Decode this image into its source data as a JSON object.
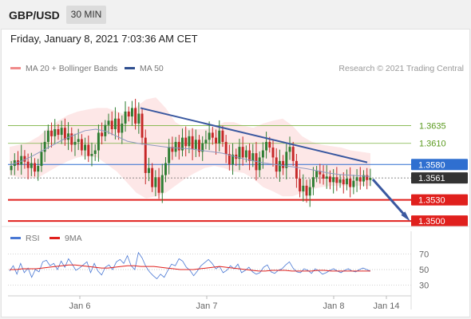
{
  "header": {
    "pair": "GBP/USD",
    "timeframe": "30 MIN"
  },
  "subheader": {
    "datetime": "Friday, January 8, 2021 7:03:36 AM CET"
  },
  "legend": {
    "ma20_label": "MA 20 + Bollinger Bands",
    "ma50_label": "MA 50",
    "rsi_label": "RSI",
    "ma9_label": "9MA"
  },
  "credit": "Research © 2021 Trading Central",
  "colors": {
    "ma20": "#f08a8a",
    "ma50": "#2f4f8f",
    "bollinger_fill": "#fde3e3",
    "up_candle": "#2e7d32",
    "down_candle": "#c62828",
    "resistance": "#7cb342",
    "support": "#e0201d",
    "current_price": "#333333",
    "pivot": "#2f6fd0",
    "trendline": "#3a58a0",
    "rsi": "#4a78d4",
    "rsi_ma9": "#e0201d"
  },
  "chart_data": [
    {
      "type": "candlestick",
      "title": "GBP/USD 30 MIN",
      "x_ticks": [
        "Jan 6",
        "Jan 7",
        "Jan 8",
        "Jan 14"
      ],
      "ylim": [
        1.349,
        1.37
      ],
      "levels": [
        {
          "value": 1.3635,
          "label": "1.3635",
          "kind": "resistance"
        },
        {
          "value": 1.361,
          "label": "1.3610",
          "kind": "resistance"
        },
        {
          "value": 1.358,
          "label": "1.3580",
          "kind": "pivot"
        },
        {
          "value": 1.3561,
          "label": "1.3561",
          "kind": "current_price"
        },
        {
          "value": 1.353,
          "label": "1.3530",
          "kind": "support"
        },
        {
          "value": 1.35,
          "label": "1.3500",
          "kind": "support"
        }
      ],
      "close": [
        1.3578,
        1.3586,
        1.358,
        1.3592,
        1.3584,
        1.3575,
        1.3582,
        1.357,
        1.3578,
        1.3598,
        1.3612,
        1.3628,
        1.362,
        1.363,
        1.3622,
        1.3632,
        1.3615,
        1.3624,
        1.3608,
        1.3612,
        1.3616,
        1.36,
        1.3608,
        1.3592,
        1.3595,
        1.36,
        1.3625,
        1.362,
        1.3636,
        1.3642,
        1.363,
        1.3645,
        1.3625,
        1.3638,
        1.3655,
        1.3648,
        1.366,
        1.3638,
        1.3652,
        1.3618,
        1.3568,
        1.3575,
        1.3548,
        1.3562,
        1.354,
        1.3565,
        1.3582,
        1.3605,
        1.3598,
        1.3612,
        1.36,
        1.3618,
        1.3606,
        1.362,
        1.3602,
        1.3615,
        1.3598,
        1.361,
        1.3615,
        1.3625,
        1.3618,
        1.361,
        1.3628,
        1.3612,
        1.3595,
        1.358,
        1.3594,
        1.3588,
        1.3605,
        1.359,
        1.36,
        1.3585,
        1.3596,
        1.3572,
        1.359,
        1.36,
        1.3612,
        1.3604,
        1.359,
        1.357,
        1.3585,
        1.3575,
        1.3598,
        1.3605,
        1.3585,
        1.356,
        1.3542,
        1.355,
        1.3536,
        1.3548,
        1.3562,
        1.3571,
        1.3566,
        1.356,
        1.3563,
        1.3555,
        1.3562,
        1.3554,
        1.3559,
        1.3552,
        1.356,
        1.3548,
        1.3557,
        1.3562,
        1.3556,
        1.3565,
        1.3558,
        1.3561
      ],
      "bollinger_upper": [
        1.3605,
        1.3608,
        1.3612,
        1.362,
        1.3632,
        1.3642,
        1.365,
        1.3655,
        1.3658,
        1.366,
        1.366,
        1.3655,
        1.365,
        1.3662,
        1.3672,
        1.3675,
        1.366,
        1.364,
        1.3632,
        1.363,
        1.363,
        1.3632,
        1.364,
        1.364,
        1.3635,
        1.3632,
        1.3638,
        1.3642,
        1.3645,
        1.3635,
        1.362,
        1.3612,
        1.3608,
        1.3606,
        1.3604,
        1.36,
        1.3598,
        1.3596
      ],
      "bollinger_lower": [
        1.3565,
        1.3562,
        1.356,
        1.3562,
        1.357,
        1.3578,
        1.3585,
        1.359,
        1.3592,
        1.359,
        1.358,
        1.357,
        1.3555,
        1.354,
        1.3532,
        1.3535,
        1.354,
        1.355,
        1.356,
        1.3568,
        1.3575,
        1.3578,
        1.3575,
        1.357,
        1.3568,
        1.356,
        1.3548,
        1.3542,
        1.3535,
        1.3535,
        1.354,
        1.3545,
        1.3548,
        1.355,
        1.355,
        1.355,
        1.355,
        1.355
      ],
      "ma50": [
        1.358,
        1.3585,
        1.3592,
        1.36,
        1.3608,
        1.3616,
        1.3622,
        1.3628,
        1.363,
        1.3627,
        1.362,
        1.3613,
        1.361,
        1.3608,
        1.3606,
        1.3604,
        1.3603,
        1.3602,
        1.36,
        1.3598,
        1.3596,
        1.3592,
        1.3588,
        1.3585,
        1.3582,
        1.358,
        1.3578,
        1.3576,
        1.3574,
        1.3571,
        1.3568,
        1.3566,
        1.3565,
        1.3564,
        1.3563
      ],
      "trendline": {
        "from": 1.366,
        "to": 1.3583
      },
      "forecast_arrow": {
        "from": 1.3559,
        "to": 1.35
      }
    },
    {
      "type": "line",
      "title": "RSI",
      "y_ticks": [
        70,
        50,
        30
      ],
      "ylim": [
        20,
        80
      ],
      "series": [
        {
          "name": "RSI",
          "values": [
            48,
            55,
            44,
            58,
            46,
            52,
            40,
            50,
            47,
            60,
            62,
            55,
            58,
            50,
            61,
            53,
            64,
            57,
            49,
            52,
            56,
            60,
            46,
            58,
            48,
            43,
            53,
            56,
            50,
            60,
            63,
            58,
            68,
            55,
            50,
            72,
            65,
            54,
            47,
            42,
            38,
            44,
            40,
            49,
            57,
            55,
            64,
            61,
            53,
            49,
            42,
            48,
            55,
            59,
            63,
            58,
            51,
            54,
            46,
            49,
            55,
            51,
            57,
            46,
            49,
            53,
            47,
            44,
            46,
            53,
            56,
            47,
            45,
            49,
            51,
            56,
            60,
            52,
            47,
            46,
            51,
            49,
            45,
            51,
            48,
            44,
            46,
            49,
            51,
            48,
            46,
            49,
            51,
            48,
            47,
            50,
            52,
            50,
            48
          ]
        },
        {
          "name": "9MA",
          "values": [
            50,
            50,
            51,
            51,
            51,
            52,
            53,
            54,
            55,
            56,
            56,
            55,
            54,
            53,
            52,
            52,
            53,
            54,
            55,
            55,
            54,
            54,
            54,
            53,
            52,
            51,
            50,
            50,
            50,
            51,
            52,
            53,
            54,
            53,
            52,
            51,
            50,
            49,
            48,
            48,
            49,
            49,
            49,
            48,
            48,
            48,
            48,
            49,
            49,
            48,
            48,
            48,
            48,
            48,
            48,
            48
          ]
        }
      ]
    }
  ]
}
